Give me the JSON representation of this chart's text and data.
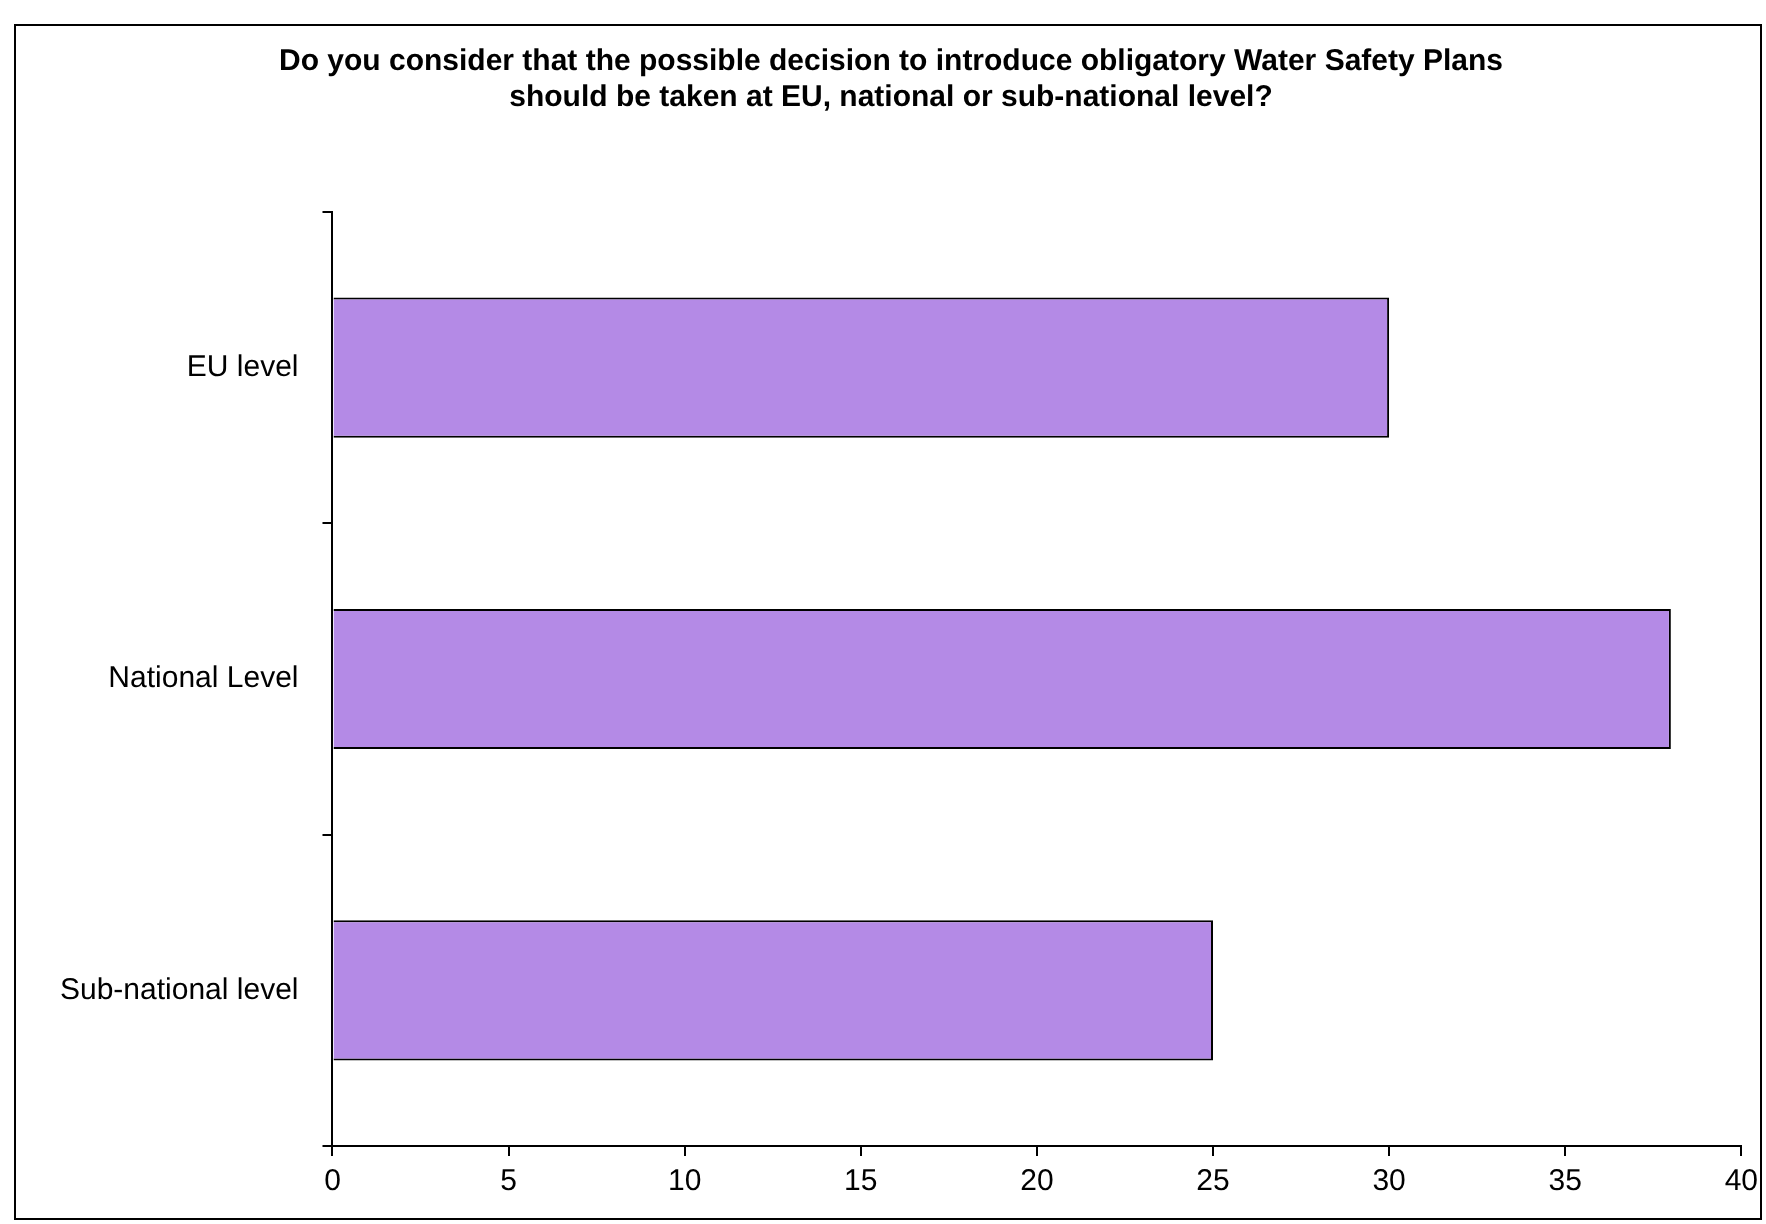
{
  "chart_data": {
    "type": "bar",
    "orientation": "horizontal",
    "title": "Do you consider that the possible decision to introduce obligatory Water Safety Plans should be taken at EU, national or sub-national level?",
    "categories": [
      "EU level",
      "National Level",
      "Sub-national level"
    ],
    "values": [
      30,
      38,
      25
    ],
    "color": "#b48ae6",
    "xlim": [
      0,
      40
    ],
    "xticks": [
      0,
      5,
      10,
      15,
      20,
      25,
      30,
      35,
      40
    ],
    "grid": false,
    "legend": false
  }
}
